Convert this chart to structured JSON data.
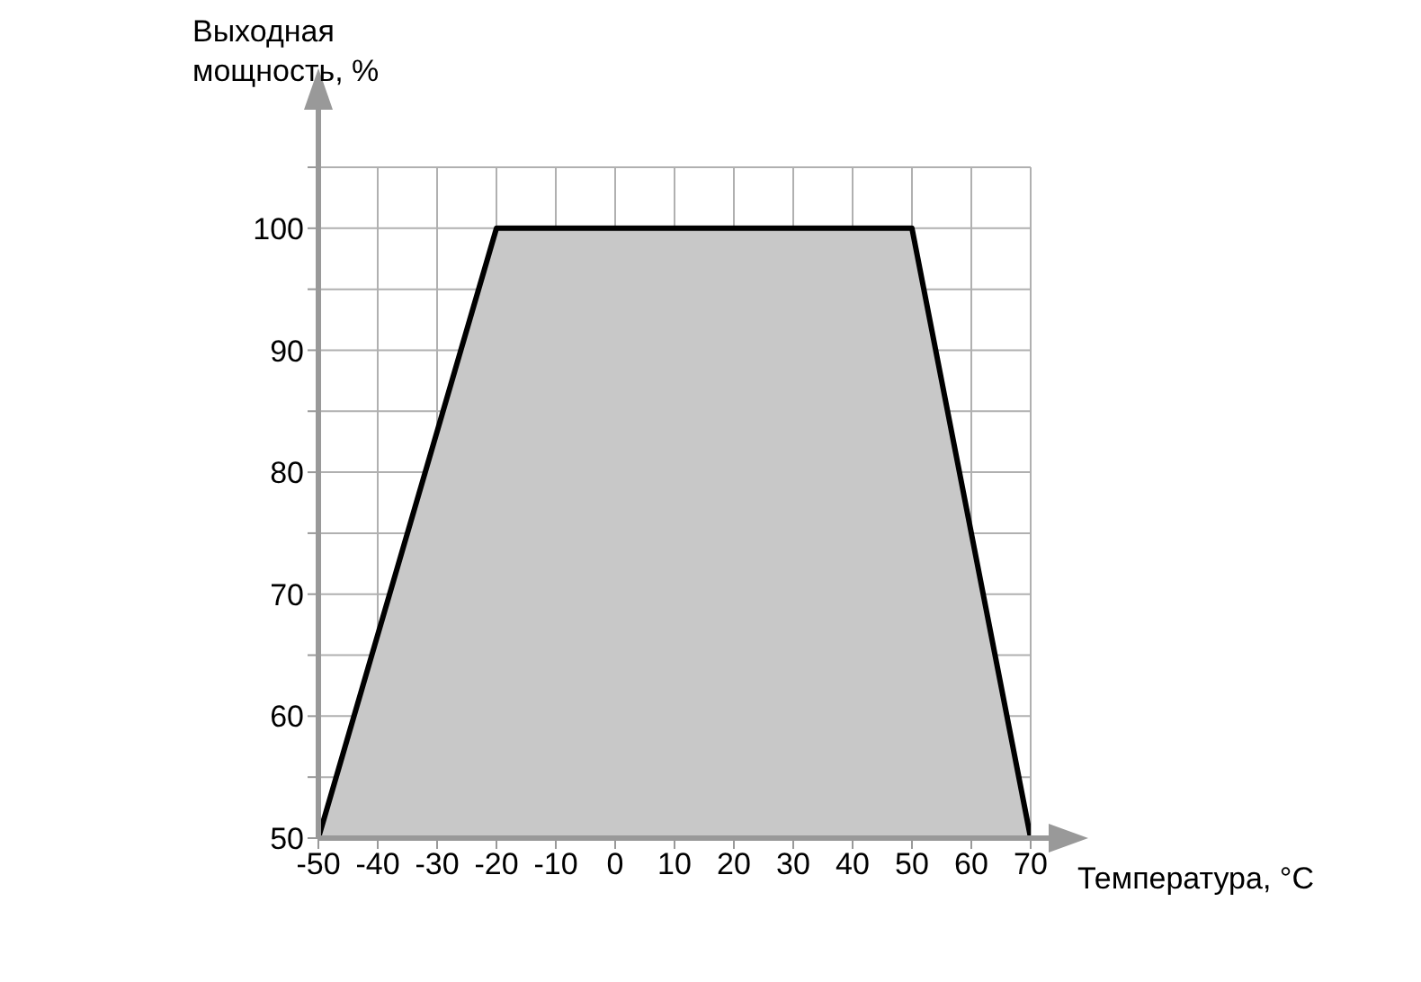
{
  "chart_data": {
    "type": "area",
    "xlabel": "Температура, °C",
    "ylabel": "Выходная\nмощность, %",
    "x": [
      -50,
      -20,
      50,
      70
    ],
    "series": [
      {
        "color": "#c8c8c8",
        "values": [
          50,
          100,
          100,
          50
        ]
      }
    ],
    "xlim": [
      -50,
      70
    ],
    "xticks": [
      -50,
      -40,
      -30,
      -20,
      -10,
      0,
      10,
      20,
      30,
      40,
      50,
      60,
      70
    ],
    "ylim": [
      50,
      105
    ],
    "yticks": [
      50,
      {
        "value": 55,
        "label": null
      },
      60,
      {
        "value": 65,
        "label": null
      },
      70,
      {
        "value": 75,
        "label": null
      },
      80,
      {
        "value": 85,
        "label": null
      },
      90,
      {
        "value": 95,
        "label": null
      },
      100,
      {
        "value": 105,
        "label": null
      }
    ],
    "grid": true
  }
}
